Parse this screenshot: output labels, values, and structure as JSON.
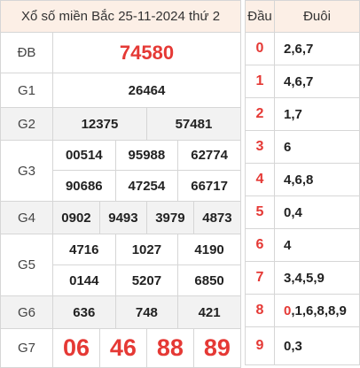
{
  "title": "Xổ số miền Bắc 25-11-2024 thứ 2",
  "prizes": {
    "db": {
      "label": "ĐB",
      "numbers": [
        "74580"
      ]
    },
    "g1": {
      "label": "G1",
      "numbers": [
        "26464"
      ]
    },
    "g2": {
      "label": "G2",
      "numbers": [
        "12375",
        "57481"
      ]
    },
    "g3": {
      "label": "G3",
      "numbers": [
        "00514",
        "95988",
        "62774",
        "90686",
        "47254",
        "66717"
      ]
    },
    "g4": {
      "label": "G4",
      "numbers": [
        "0902",
        "9493",
        "3979",
        "4873"
      ]
    },
    "g5": {
      "label": "G5",
      "numbers": [
        "4716",
        "1027",
        "4190",
        "0144",
        "5207",
        "6850"
      ]
    },
    "g6": {
      "label": "G6",
      "numbers": [
        "636",
        "748",
        "421"
      ]
    },
    "g7": {
      "label": "G7",
      "numbers": [
        "06",
        "46",
        "88",
        "89"
      ]
    }
  },
  "loto": {
    "head_label": "Đầu",
    "tail_label": "Đuôi",
    "rows": [
      {
        "head": "0",
        "tail": "2,6,7"
      },
      {
        "head": "1",
        "tail": "4,6,7"
      },
      {
        "head": "2",
        "tail": "1,7"
      },
      {
        "head": "3",
        "tail": "6"
      },
      {
        "head": "4",
        "tail": "4,6,8"
      },
      {
        "head": "5",
        "tail": "0,4"
      },
      {
        "head": "6",
        "tail": "4"
      },
      {
        "head": "7",
        "tail": "3,4,5,9"
      },
      {
        "head": "8",
        "tail_hl": "0",
        "tail_rest": ",1,6,8,8,9"
      },
      {
        "head": "9",
        "tail": "0,3"
      }
    ]
  },
  "colors": {
    "accent": "#e53935",
    "header_bg": "#fcefe6",
    "alt_row_bg": "#f2f2f2"
  }
}
